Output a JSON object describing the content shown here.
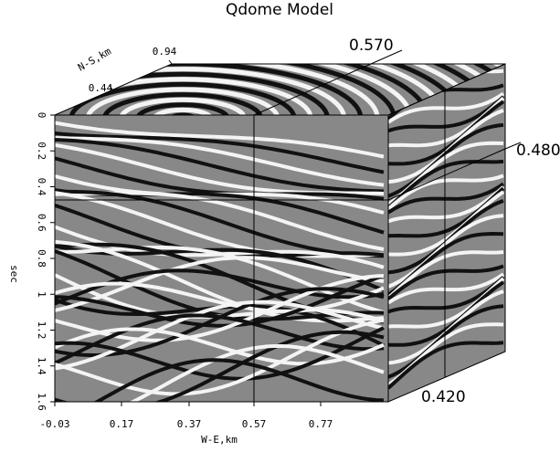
{
  "title": "Qdome Model",
  "axes": {
    "time": {
      "label": "sec",
      "ticks": [
        "0",
        "0.2",
        "0.4",
        "0.6",
        "0.8",
        "1",
        "1.2",
        "1.4",
        "1.6"
      ]
    },
    "we": {
      "label": "W-E,km",
      "ticks": [
        "-0.03",
        "0.17",
        "0.37",
        "0.57",
        "0.77"
      ]
    },
    "ns": {
      "label": "N-S,km",
      "ticks": [
        "0.44",
        "0.94"
      ]
    }
  },
  "slice_labels": {
    "top": "0.570",
    "side": "0.480",
    "bottom": "0.420"
  }
}
